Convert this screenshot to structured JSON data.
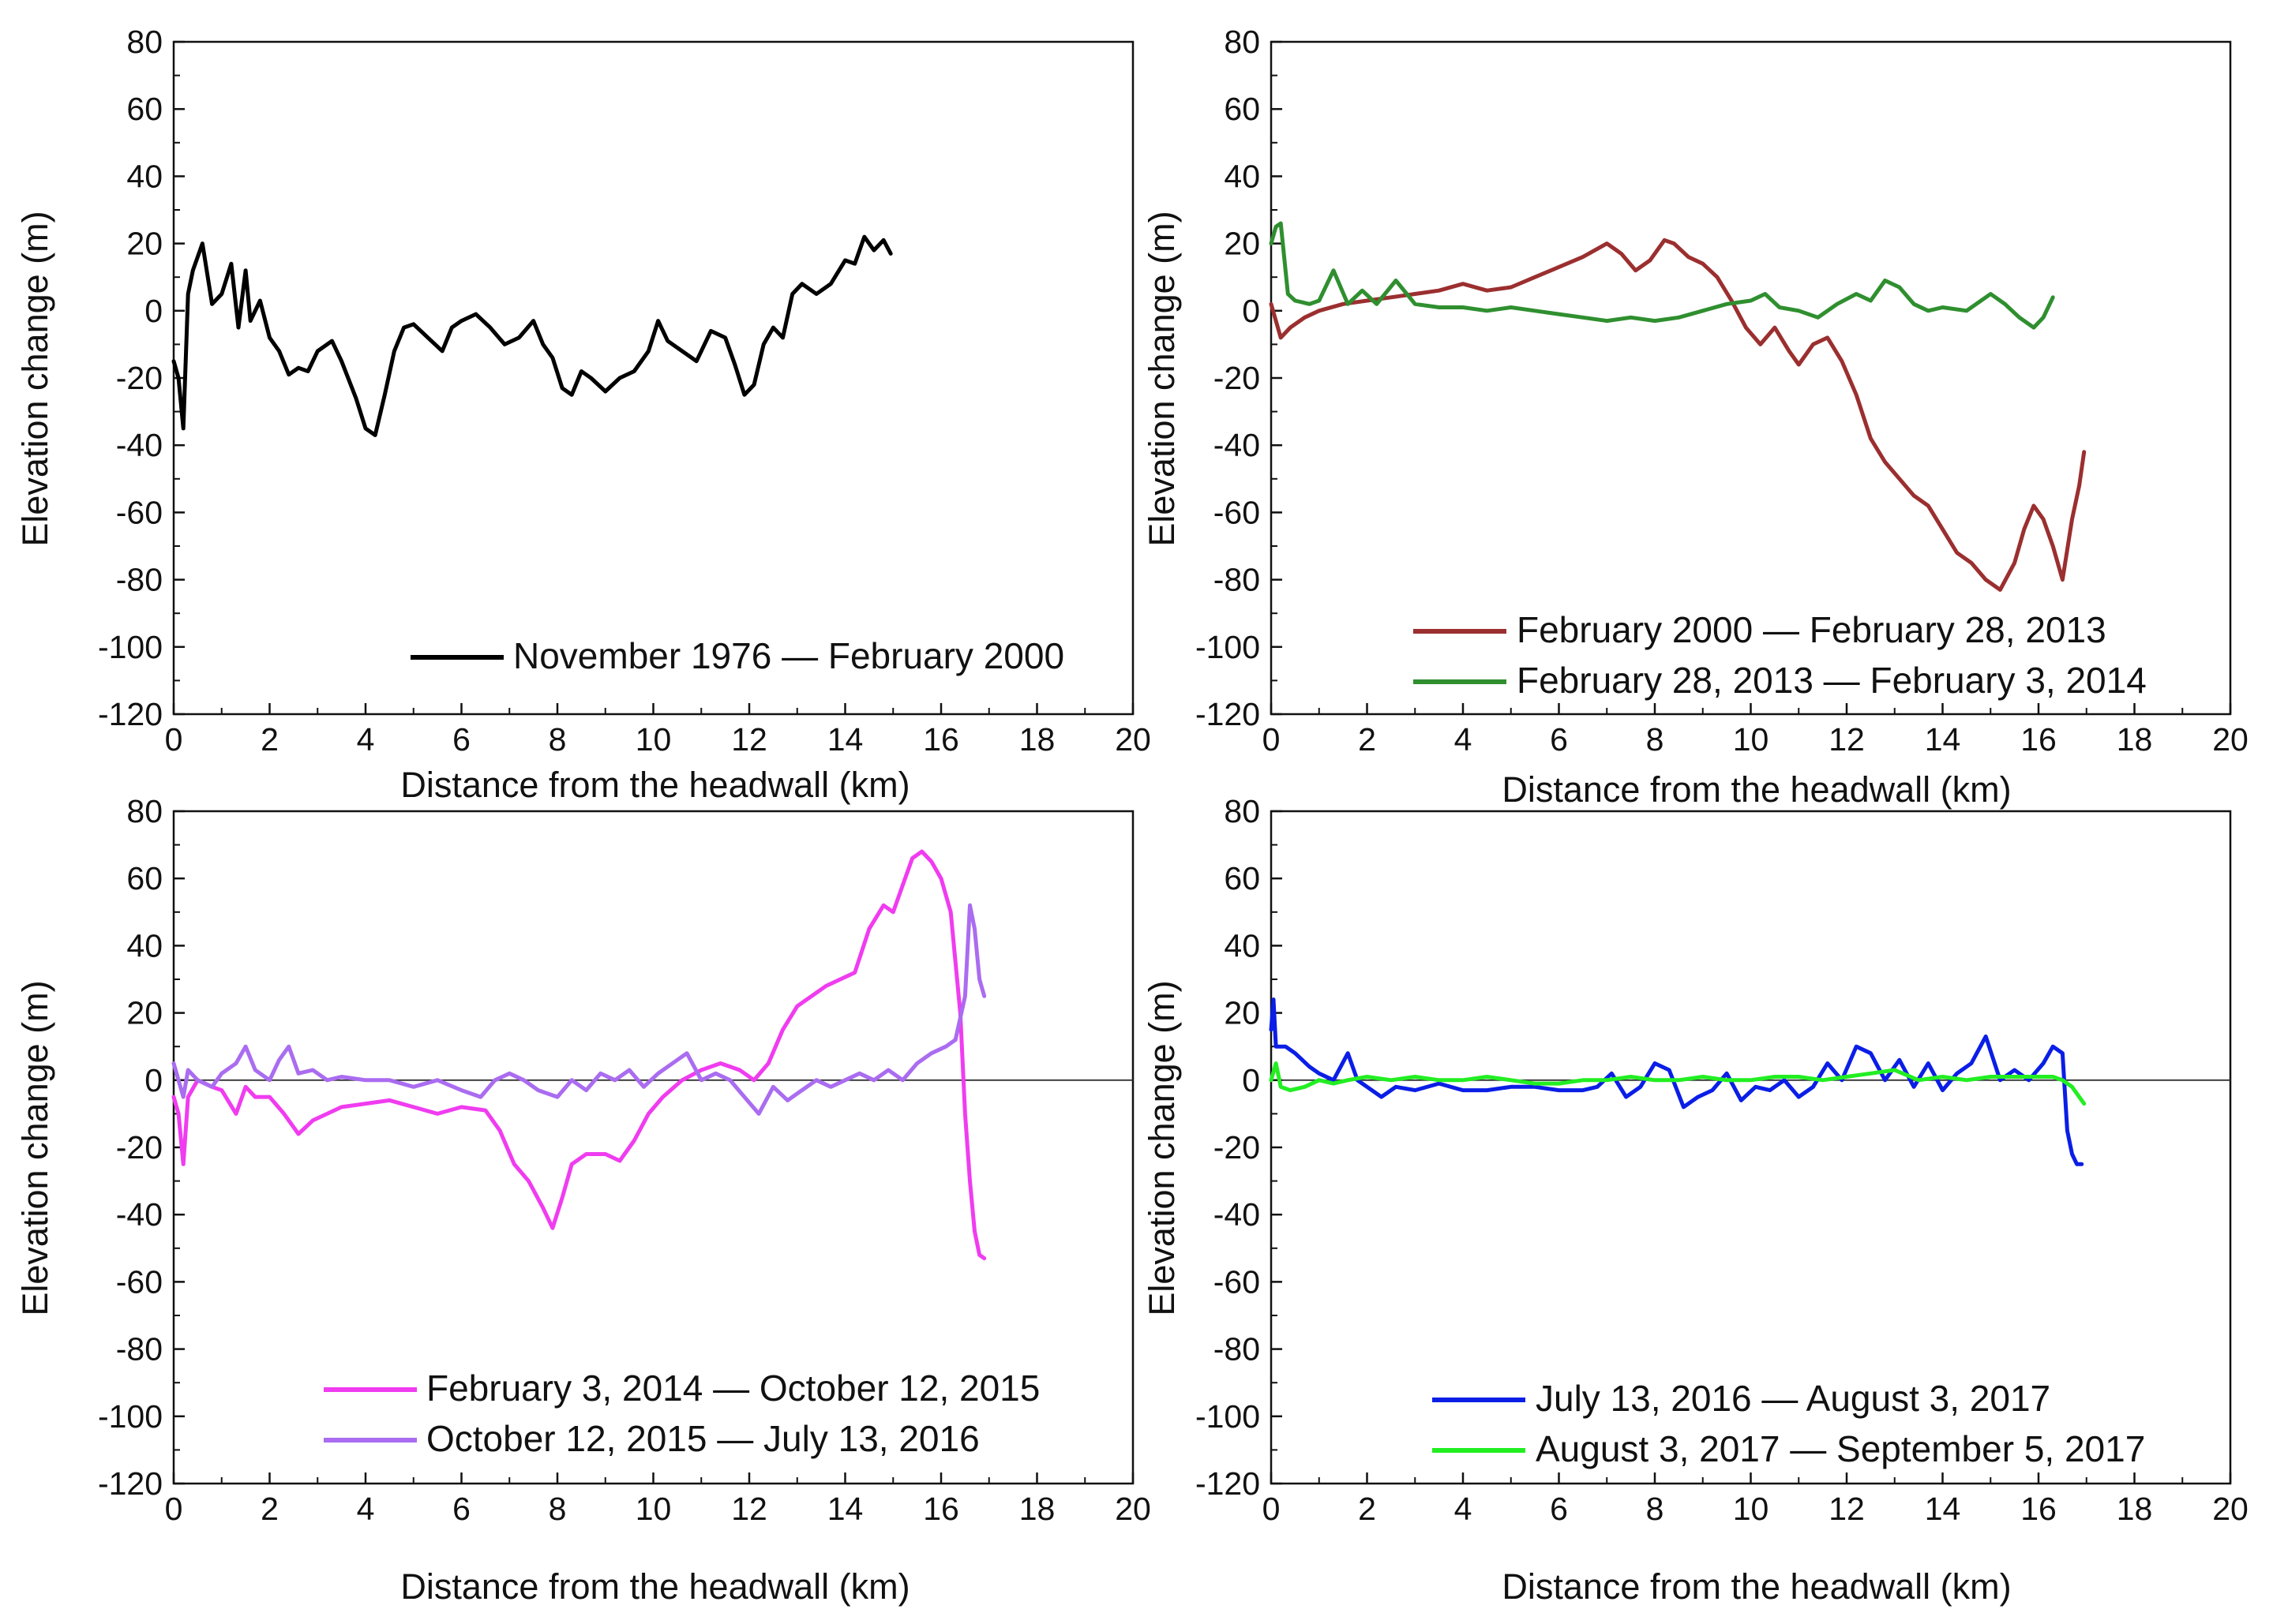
{
  "figure": {
    "panels": 4
  },
  "chart_data": [
    {
      "type": "line",
      "panel": "top-left",
      "title": "",
      "xlabel": "Distance from the headwall (km)",
      "ylabel": "Elevation change (m)",
      "xlim": [
        0,
        20
      ],
      "ylim": [
        -120,
        80
      ],
      "xticks": [
        0,
        2,
        4,
        6,
        8,
        10,
        12,
        14,
        16,
        18,
        20
      ],
      "yticks": [
        80,
        60,
        40,
        20,
        0,
        -20,
        -40,
        -60,
        -80,
        -100,
        -120
      ],
      "zero_line": false,
      "legend_position": "bottom-right",
      "series": [
        {
          "name": "November 1976 — February 2000",
          "color": "#000000",
          "x": [
            0,
            0.1,
            0.2,
            0.3,
            0.4,
            0.6,
            0.8,
            1.0,
            1.2,
            1.35,
            1.5,
            1.6,
            1.8,
            2.0,
            2.2,
            2.4,
            2.6,
            2.8,
            3.0,
            3.3,
            3.5,
            3.8,
            4.0,
            4.2,
            4.4,
            4.6,
            4.8,
            5.0,
            5.3,
            5.6,
            5.8,
            6.0,
            6.3,
            6.6,
            6.9,
            7.2,
            7.5,
            7.7,
            7.9,
            8.1,
            8.3,
            8.5,
            8.7,
            9.0,
            9.3,
            9.6,
            9.9,
            10.1,
            10.3,
            10.6,
            10.9,
            11.2,
            11.5,
            11.7,
            11.9,
            12.1,
            12.3,
            12.5,
            12.7,
            12.9,
            13.1,
            13.4,
            13.7,
            14.0,
            14.2,
            14.4,
            14.6,
            14.8,
            14.95
          ],
          "y": [
            -15,
            -20,
            -35,
            5,
            12,
            20,
            2,
            5,
            14,
            -5,
            12,
            -3,
            3,
            -8,
            -12,
            -19,
            -17,
            -18,
            -12,
            -9,
            -15,
            -26,
            -35,
            -37,
            -25,
            -12,
            -5,
            -4,
            -8,
            -12,
            -5,
            -3,
            -1,
            -5,
            -10,
            -8,
            -3,
            -10,
            -14,
            -23,
            -25,
            -18,
            -20,
            -24,
            -20,
            -18,
            -12,
            -3,
            -9,
            -12,
            -15,
            -6,
            -8,
            -16,
            -25,
            -22,
            -10,
            -5,
            -8,
            5,
            8,
            5,
            8,
            15,
            14,
            22,
            18,
            21,
            17
          ]
        }
      ]
    },
    {
      "type": "line",
      "panel": "top-right",
      "title": "",
      "xlabel": "Distance from the headwall (km)",
      "ylabel": "Elevation change (m)",
      "xlim": [
        0,
        20
      ],
      "ylim": [
        -120,
        80
      ],
      "xticks": [
        0,
        2,
        4,
        6,
        8,
        10,
        12,
        14,
        16,
        18,
        20
      ],
      "yticks": [
        80,
        60,
        40,
        20,
        0,
        -20,
        -40,
        -60,
        -80,
        -100,
        -120
      ],
      "zero_line": false,
      "legend_position": "bottom-right",
      "series": [
        {
          "name": "February 2000 — February 28, 2013",
          "color": "#9b2f2f",
          "x": [
            0,
            0.2,
            0.4,
            0.7,
            1.0,
            1.5,
            2.0,
            2.5,
            3.0,
            3.5,
            4.0,
            4.5,
            5.0,
            5.5,
            6.0,
            6.5,
            7.0,
            7.3,
            7.6,
            7.9,
            8.2,
            8.4,
            8.7,
            9.0,
            9.3,
            9.6,
            9.9,
            10.2,
            10.5,
            10.8,
            11.0,
            11.3,
            11.6,
            11.9,
            12.2,
            12.5,
            12.8,
            13.1,
            13.4,
            13.7,
            14.0,
            14.3,
            14.6,
            14.9,
            15.2,
            15.5,
            15.7,
            15.9,
            16.1,
            16.3,
            16.5,
            16.7,
            16.85,
            16.95
          ],
          "y": [
            2,
            -8,
            -5,
            -2,
            0,
            2,
            3,
            4,
            5,
            6,
            8,
            6,
            7,
            10,
            13,
            16,
            20,
            17,
            12,
            15,
            21,
            20,
            16,
            14,
            10,
            3,
            -5,
            -10,
            -5,
            -12,
            -16,
            -10,
            -8,
            -15,
            -25,
            -38,
            -45,
            -50,
            -55,
            -58,
            -65,
            -72,
            -75,
            -80,
            -83,
            -75,
            -65,
            -58,
            -62,
            -70,
            -80,
            -62,
            -52,
            -42
          ]
        },
        {
          "name": "February 28, 2013 — February 3, 2014",
          "color": "#2f8f2f",
          "x": [
            0,
            0.1,
            0.2,
            0.35,
            0.5,
            0.8,
            1.0,
            1.3,
            1.6,
            1.9,
            2.2,
            2.6,
            3.0,
            3.5,
            4.0,
            4.5,
            5.0,
            5.5,
            6.0,
            6.5,
            7.0,
            7.5,
            8.0,
            8.5,
            9.0,
            9.5,
            10.0,
            10.3,
            10.6,
            11.0,
            11.4,
            11.8,
            12.2,
            12.5,
            12.8,
            13.1,
            13.4,
            13.7,
            14.0,
            14.5,
            15.0,
            15.3,
            15.6,
            15.9,
            16.1,
            16.3
          ],
          "y": [
            20,
            25,
            26,
            5,
            3,
            2,
            3,
            12,
            2,
            6,
            2,
            9,
            2,
            1,
            1,
            0,
            1,
            0,
            -1,
            -2,
            -3,
            -2,
            -3,
            -2,
            0,
            2,
            3,
            5,
            1,
            0,
            -2,
            2,
            5,
            3,
            9,
            7,
            2,
            0,
            1,
            0,
            5,
            2,
            -2,
            -5,
            -2,
            4
          ]
        }
      ]
    },
    {
      "type": "line",
      "panel": "bottom-left",
      "title": "",
      "xlabel": "Distance from the headwall (km)",
      "ylabel": "Elevation change (m)",
      "xlim": [
        0,
        20
      ],
      "ylim": [
        -120,
        80
      ],
      "xticks": [
        0,
        2,
        4,
        6,
        8,
        10,
        12,
        14,
        16,
        18,
        20
      ],
      "yticks": [
        80,
        60,
        40,
        20,
        0,
        -20,
        -40,
        -60,
        -80,
        -100,
        -120
      ],
      "zero_line": true,
      "legend_position": "bottom-right",
      "series": [
        {
          "name": "February 3, 2014 — October 12, 2015",
          "color": "#f03cf0",
          "x": [
            0,
            0.1,
            0.2,
            0.3,
            0.5,
            0.8,
            1.0,
            1.3,
            1.5,
            1.7,
            2.0,
            2.3,
            2.6,
            2.9,
            3.2,
            3.5,
            4.0,
            4.5,
            5.0,
            5.5,
            6.0,
            6.5,
            6.8,
            7.1,
            7.4,
            7.7,
            7.9,
            8.1,
            8.3,
            8.6,
            9.0,
            9.3,
            9.6,
            9.9,
            10.2,
            10.6,
            11.0,
            11.4,
            11.8,
            12.1,
            12.4,
            12.7,
            13.0,
            13.3,
            13.6,
            13.9,
            14.2,
            14.5,
            14.8,
            15.0,
            15.2,
            15.4,
            15.6,
            15.8,
            16.0,
            16.2,
            16.4,
            16.5,
            16.6,
            16.7,
            16.8,
            16.9
          ],
          "y": [
            -5,
            -10,
            -25,
            -5,
            0,
            -2,
            -3,
            -10,
            -2,
            -5,
            -5,
            -10,
            -16,
            -12,
            -10,
            -8,
            -7,
            -6,
            -8,
            -10,
            -8,
            -9,
            -15,
            -25,
            -30,
            -38,
            -44,
            -35,
            -25,
            -22,
            -22,
            -24,
            -18,
            -10,
            -5,
            0,
            3,
            5,
            3,
            0,
            5,
            15,
            22,
            25,
            28,
            30,
            32,
            45,
            52,
            50,
            58,
            66,
            68,
            65,
            60,
            50,
            20,
            -10,
            -30,
            -45,
            -52,
            -53
          ]
        },
        {
          "name": "October 12, 2015 — July 13, 2016",
          "color": "#aa6cf0",
          "x": [
            0,
            0.1,
            0.2,
            0.3,
            0.5,
            0.8,
            1.0,
            1.3,
            1.5,
            1.7,
            2.0,
            2.2,
            2.4,
            2.6,
            2.9,
            3.2,
            3.5,
            4.0,
            4.5,
            5.0,
            5.5,
            6.0,
            6.4,
            6.7,
            7.0,
            7.3,
            7.6,
            8.0,
            8.3,
            8.6,
            8.9,
            9.2,
            9.5,
            9.8,
            10.1,
            10.4,
            10.7,
            11.0,
            11.3,
            11.6,
            11.9,
            12.2,
            12.5,
            12.8,
            13.1,
            13.4,
            13.7,
            14.0,
            14.3,
            14.6,
            14.9,
            15.2,
            15.5,
            15.8,
            16.1,
            16.3,
            16.5,
            16.6,
            16.7,
            16.8,
            16.9
          ],
          "y": [
            5,
            0,
            -5,
            3,
            0,
            -2,
            2,
            5,
            10,
            3,
            0,
            6,
            10,
            2,
            3,
            0,
            1,
            0,
            0,
            -2,
            0,
            -3,
            -5,
            0,
            2,
            0,
            -3,
            -5,
            0,
            -3,
            2,
            0,
            3,
            -2,
            2,
            5,
            8,
            0,
            2,
            0,
            -5,
            -10,
            -2,
            -6,
            -3,
            0,
            -2,
            0,
            2,
            0,
            3,
            0,
            5,
            8,
            10,
            12,
            25,
            52,
            45,
            30,
            25
          ]
        }
      ]
    },
    {
      "type": "line",
      "panel": "bottom-right",
      "title": "",
      "xlabel": "Distance from the headwall (km)",
      "ylabel": "Elevation change (m)",
      "xlim": [
        0,
        20
      ],
      "ylim": [
        -120,
        80
      ],
      "xticks": [
        0,
        2,
        4,
        6,
        8,
        10,
        12,
        14,
        16,
        18,
        20
      ],
      "yticks": [
        80,
        60,
        40,
        20,
        0,
        -20,
        -40,
        -60,
        -80,
        -100,
        -120
      ],
      "zero_line": true,
      "legend_position": "bottom-right",
      "series": [
        {
          "name": "July 13, 2016 — August 3, 2017",
          "color": "#0a1ee6",
          "x": [
            0,
            0.05,
            0.1,
            0.3,
            0.5,
            0.8,
            1.0,
            1.3,
            1.6,
            1.8,
            2.0,
            2.3,
            2.6,
            3.0,
            3.5,
            4.0,
            4.5,
            5.0,
            5.5,
            6.0,
            6.5,
            6.8,
            7.1,
            7.4,
            7.7,
            8.0,
            8.3,
            8.6,
            8.9,
            9.2,
            9.5,
            9.8,
            10.1,
            10.4,
            10.7,
            11.0,
            11.3,
            11.6,
            11.9,
            12.2,
            12.5,
            12.8,
            13.1,
            13.4,
            13.7,
            14.0,
            14.3,
            14.6,
            14.9,
            15.2,
            15.5,
            15.8,
            16.1,
            16.3,
            16.5,
            16.6,
            16.7,
            16.8,
            16.9
          ],
          "y": [
            15,
            24,
            10,
            10,
            8,
            4,
            2,
            0,
            8,
            0,
            -2,
            -5,
            -2,
            -3,
            -1,
            -3,
            -3,
            -2,
            -2,
            -3,
            -3,
            -2,
            2,
            -5,
            -2,
            5,
            3,
            -8,
            -5,
            -3,
            2,
            -6,
            -2,
            -3,
            0,
            -5,
            -2,
            5,
            0,
            10,
            8,
            0,
            6,
            -2,
            5,
            -3,
            2,
            5,
            13,
            0,
            3,
            0,
            5,
            10,
            8,
            -15,
            -22,
            -25,
            -25
          ]
        },
        {
          "name": "August 3, 2017 — September 5, 2017",
          "color": "#22ee22",
          "x": [
            0,
            0.1,
            0.2,
            0.4,
            0.7,
            1.0,
            1.3,
            1.6,
            2.0,
            2.5,
            3.0,
            3.5,
            4.0,
            4.5,
            5.0,
            5.5,
            6.0,
            6.5,
            7.0,
            7.5,
            8.0,
            8.5,
            9.0,
            9.5,
            10.0,
            10.5,
            11.0,
            11.5,
            12.0,
            12.5,
            13.0,
            13.5,
            14.0,
            14.5,
            15.0,
            15.5,
            16.0,
            16.3,
            16.5,
            16.7,
            16.85,
            16.95
          ],
          "y": [
            0,
            5,
            -2,
            -3,
            -2,
            0,
            -1,
            0,
            1,
            0,
            1,
            0,
            0,
            1,
            0,
            -1,
            -1,
            0,
            0,
            1,
            0,
            0,
            1,
            0,
            0,
            1,
            1,
            0,
            1,
            2,
            3,
            0,
            1,
            0,
            1,
            1,
            1,
            1,
            0,
            -2,
            -5,
            -7
          ]
        }
      ]
    }
  ]
}
